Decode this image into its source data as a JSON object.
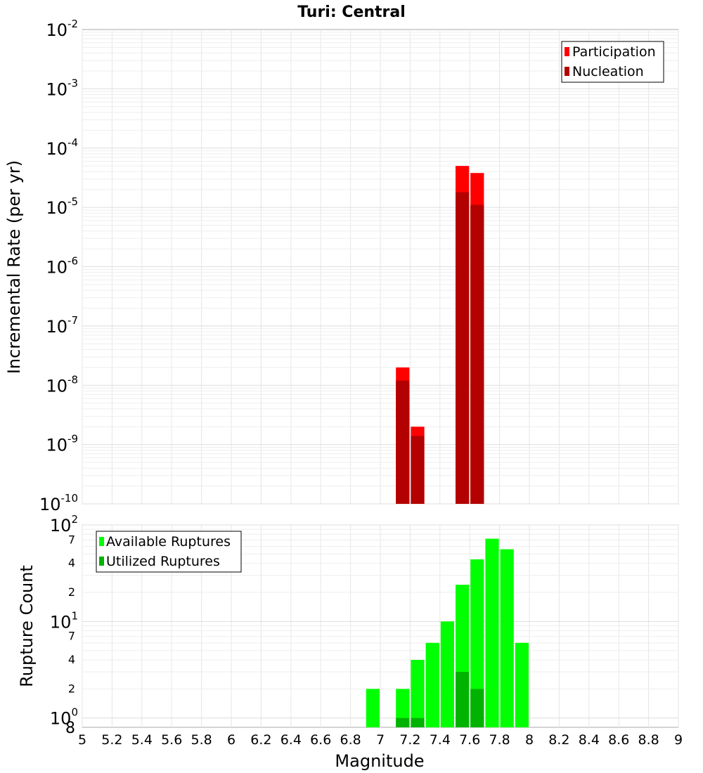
{
  "title": "Turi: Central",
  "chart_data": [
    {
      "type": "bar",
      "ylabel": "Incremental Rate (per yr)",
      "xlabel": "",
      "xlim": [
        5,
        9
      ],
      "ylim": [
        1e-10,
        0.01
      ],
      "y_scale": "log",
      "grid": true,
      "legend_position": "top-right",
      "y_tick_labels": [
        {
          "base": "10",
          "exp": "-10"
        },
        {
          "base": "10",
          "exp": "-9"
        },
        {
          "base": "10",
          "exp": "-8"
        },
        {
          "base": "10",
          "exp": "-7"
        },
        {
          "base": "10",
          "exp": "-6"
        },
        {
          "base": "10",
          "exp": "-5"
        },
        {
          "base": "10",
          "exp": "-4"
        },
        {
          "base": "10",
          "exp": "-3"
        },
        {
          "base": "10",
          "exp": "-2"
        }
      ],
      "bar_width": 0.1,
      "series": [
        {
          "name": "Participation",
          "color": "#ff0000",
          "x": [
            7.15,
            7.25,
            7.55,
            7.65
          ],
          "values": [
            2e-08,
            2e-09,
            5e-05,
            3.8e-05
          ]
        },
        {
          "name": "Nucleation",
          "color": "#b30000",
          "x": [
            7.15,
            7.25,
            7.55,
            7.65
          ],
          "values": [
            1.2e-08,
            1.4e-09,
            1.8e-05,
            1.1e-05
          ]
        }
      ]
    },
    {
      "type": "bar",
      "ylabel": "Rupture Count",
      "xlabel": "Magnitude",
      "xlim": [
        5,
        9
      ],
      "ylim": [
        0.8,
        100
      ],
      "y_scale": "log",
      "grid": true,
      "legend_position": "top-left",
      "x_tick_labels": [
        "5",
        "5.2",
        "5.4",
        "5.6",
        "5.8",
        "6",
        "6.2",
        "6.4",
        "6.6",
        "6.8",
        "7",
        "7.2",
        "7.4",
        "7.6",
        "7.8",
        "8",
        "8.2",
        "8.4",
        "8.6",
        "8.8",
        "9"
      ],
      "y_major_tick_labels": [
        {
          "base": "10",
          "exp": "0"
        },
        {
          "base": "10",
          "exp": "1"
        },
        {
          "base": "10",
          "exp": "2"
        }
      ],
      "y_minor_tick_labels": [
        "8",
        "2",
        "4",
        "7",
        "2",
        "4",
        "7"
      ],
      "bar_width": 0.1,
      "series": [
        {
          "name": "Available Ruptures",
          "color": "#00ff00",
          "x": [
            6.95,
            7.15,
            7.25,
            7.35,
            7.45,
            7.55,
            7.65,
            7.75,
            7.85,
            7.95
          ],
          "values": [
            2,
            2,
            4,
            6,
            10,
            24,
            44,
            72,
            56,
            6
          ]
        },
        {
          "name": "Utilized Ruptures",
          "color": "#00b300",
          "x": [
            7.15,
            7.25,
            7.55,
            7.65
          ],
          "values": [
            1,
            1,
            3,
            2
          ]
        }
      ]
    }
  ]
}
